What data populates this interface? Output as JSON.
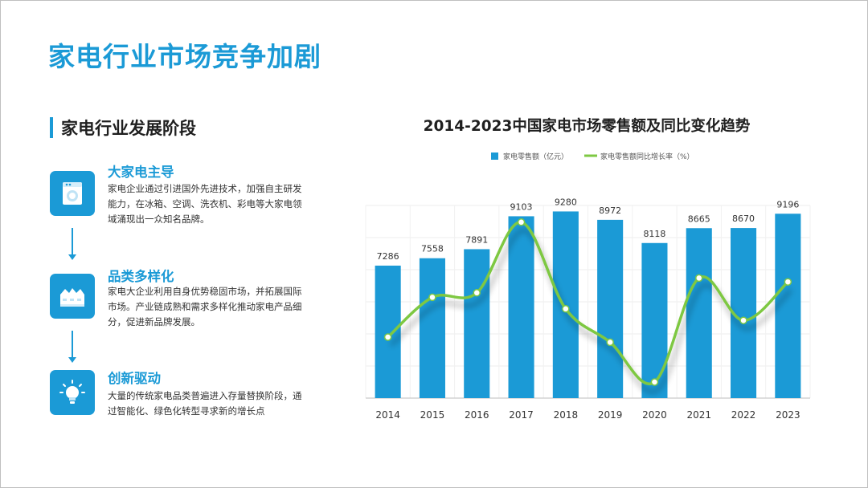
{
  "page": {
    "title": "家电行业市场竞争加剧"
  },
  "section": {
    "title": "家电行业发展阶段"
  },
  "stages": [
    {
      "title": "大家电主导",
      "desc": "家电企业通过引进国外先进技术，加强自主研发能力，在冰箱、空调、洗衣机、彩电等大家电领域涌现出一众知名品牌。",
      "icon": "washing-machine-icon"
    },
    {
      "title": "品类多样化",
      "desc": "家电大企业利用自身优势稳固市场，并拓展国际市场。产业链成熟和需求多样化推动家电产品细分，促进新品牌发展。",
      "icon": "factory-icon"
    },
    {
      "title": "创新驱动",
      "desc": "大量的传统家电品类普遍进入存量替换阶段，通过智能化、绿色化转型寻求新的增长点",
      "icon": "lightbulb-icon"
    }
  ],
  "colors": {
    "accent": "#1b9ad6",
    "line": "#7ec843"
  },
  "chart_data": {
    "type": "bar",
    "title": "2014-2023中国家电市场零售额及同比变化趋势",
    "categories": [
      "2014",
      "2015",
      "2016",
      "2017",
      "2018",
      "2019",
      "2020",
      "2021",
      "2022",
      "2023"
    ],
    "series": [
      {
        "name": "家电零售额（亿元）",
        "type": "bar",
        "values": [
          7286,
          7558,
          7891,
          9103,
          9280,
          8972,
          8118,
          8665,
          8670,
          9196
        ]
      },
      {
        "name": "家电零售额同比增长率（%）",
        "type": "line",
        "smooth": true,
        "values": [
          -2.5,
          3.7,
          4.4,
          15.4,
          1.9,
          -3.3,
          -9.5,
          6.7,
          0.1,
          6.1
        ]
      }
    ],
    "legend_position": "top-center",
    "grid": true
  }
}
